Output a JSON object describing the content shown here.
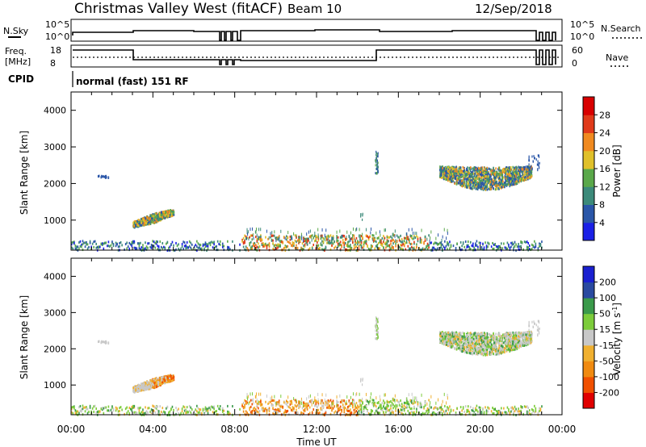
{
  "header": {
    "station_title": "Christmas Valley West (fitACF)",
    "beam_label": "Beam 10",
    "date": "12/Sep/2018"
  },
  "summary_panels": {
    "nsky_label": "N.Sky",
    "nsearch_label": "N.Search",
    "nsky_ticks": [
      "10^5",
      "10^0"
    ],
    "nsearch_ticks": [
      "10^5",
      "10^0"
    ],
    "freq_label_lines": [
      "Freq.",
      "[MHz]"
    ],
    "freq_ticks": [
      "18",
      "8"
    ],
    "nave_label": "Nave",
    "nave_ticks": [
      "60",
      "0"
    ],
    "cpid_label": "CPID",
    "cpid_text": "normal (fast) 151 RF"
  },
  "chart_data": [
    {
      "type": "heatmap",
      "name": "power",
      "ylabel": "Slant Range [km]",
      "xlabel": "",
      "ylim": [
        180,
        4500
      ],
      "yticks": [
        "1000",
        "2000",
        "3000",
        "4000"
      ],
      "xlim_hours": [
        0,
        24
      ],
      "colorbar": {
        "label": "Power [dB]",
        "ticks": [
          "4",
          "8",
          "12",
          "16",
          "20",
          "24",
          "28"
        ],
        "colors": [
          "#1a20e6",
          "#2a56a8",
          "#3c8a7a",
          "#5aa84a",
          "#e0c02a",
          "#f08a20",
          "#e03a1a",
          "#d80000"
        ]
      },
      "features": [
        {
          "region": "near-range band",
          "t_start_h": 0.0,
          "t_end_h": 23.0,
          "range_km": [
            200,
            480
          ]
        },
        {
          "region": "sloped patch",
          "t_start_h": 3.0,
          "t_end_h": 5.0,
          "range_km": [
            850,
            1350
          ]
        },
        {
          "region": "far-range arc",
          "t_start_h": 18.0,
          "t_end_h": 22.5,
          "range_km": [
            1750,
            2600
          ]
        }
      ]
    },
    {
      "type": "heatmap",
      "name": "velocity",
      "ylabel": "Slant Range [km]",
      "xlabel": "Time UT",
      "ylim": [
        180,
        4500
      ],
      "yticks": [
        "1000",
        "2000",
        "3000",
        "4000"
      ],
      "xticks": [
        "00:00",
        "04:00",
        "08:00",
        "12:00",
        "16:00",
        "20:00",
        "00:00"
      ],
      "xlim_hours": [
        0,
        24
      ],
      "colorbar": {
        "label": "Velocity [m s",
        "label_superscript": "-1",
        "label_close": "]",
        "ticks": [
          "-200",
          "-100",
          "-50",
          "-15",
          "15",
          "50",
          "100",
          "200"
        ],
        "colors": [
          "#e00000",
          "#f05000",
          "#f08a10",
          "#f0b030",
          "#c8c8c8",
          "#7ccc3a",
          "#3a9a4a",
          "#2a4aa0",
          "#1a20d0"
        ]
      }
    }
  ]
}
